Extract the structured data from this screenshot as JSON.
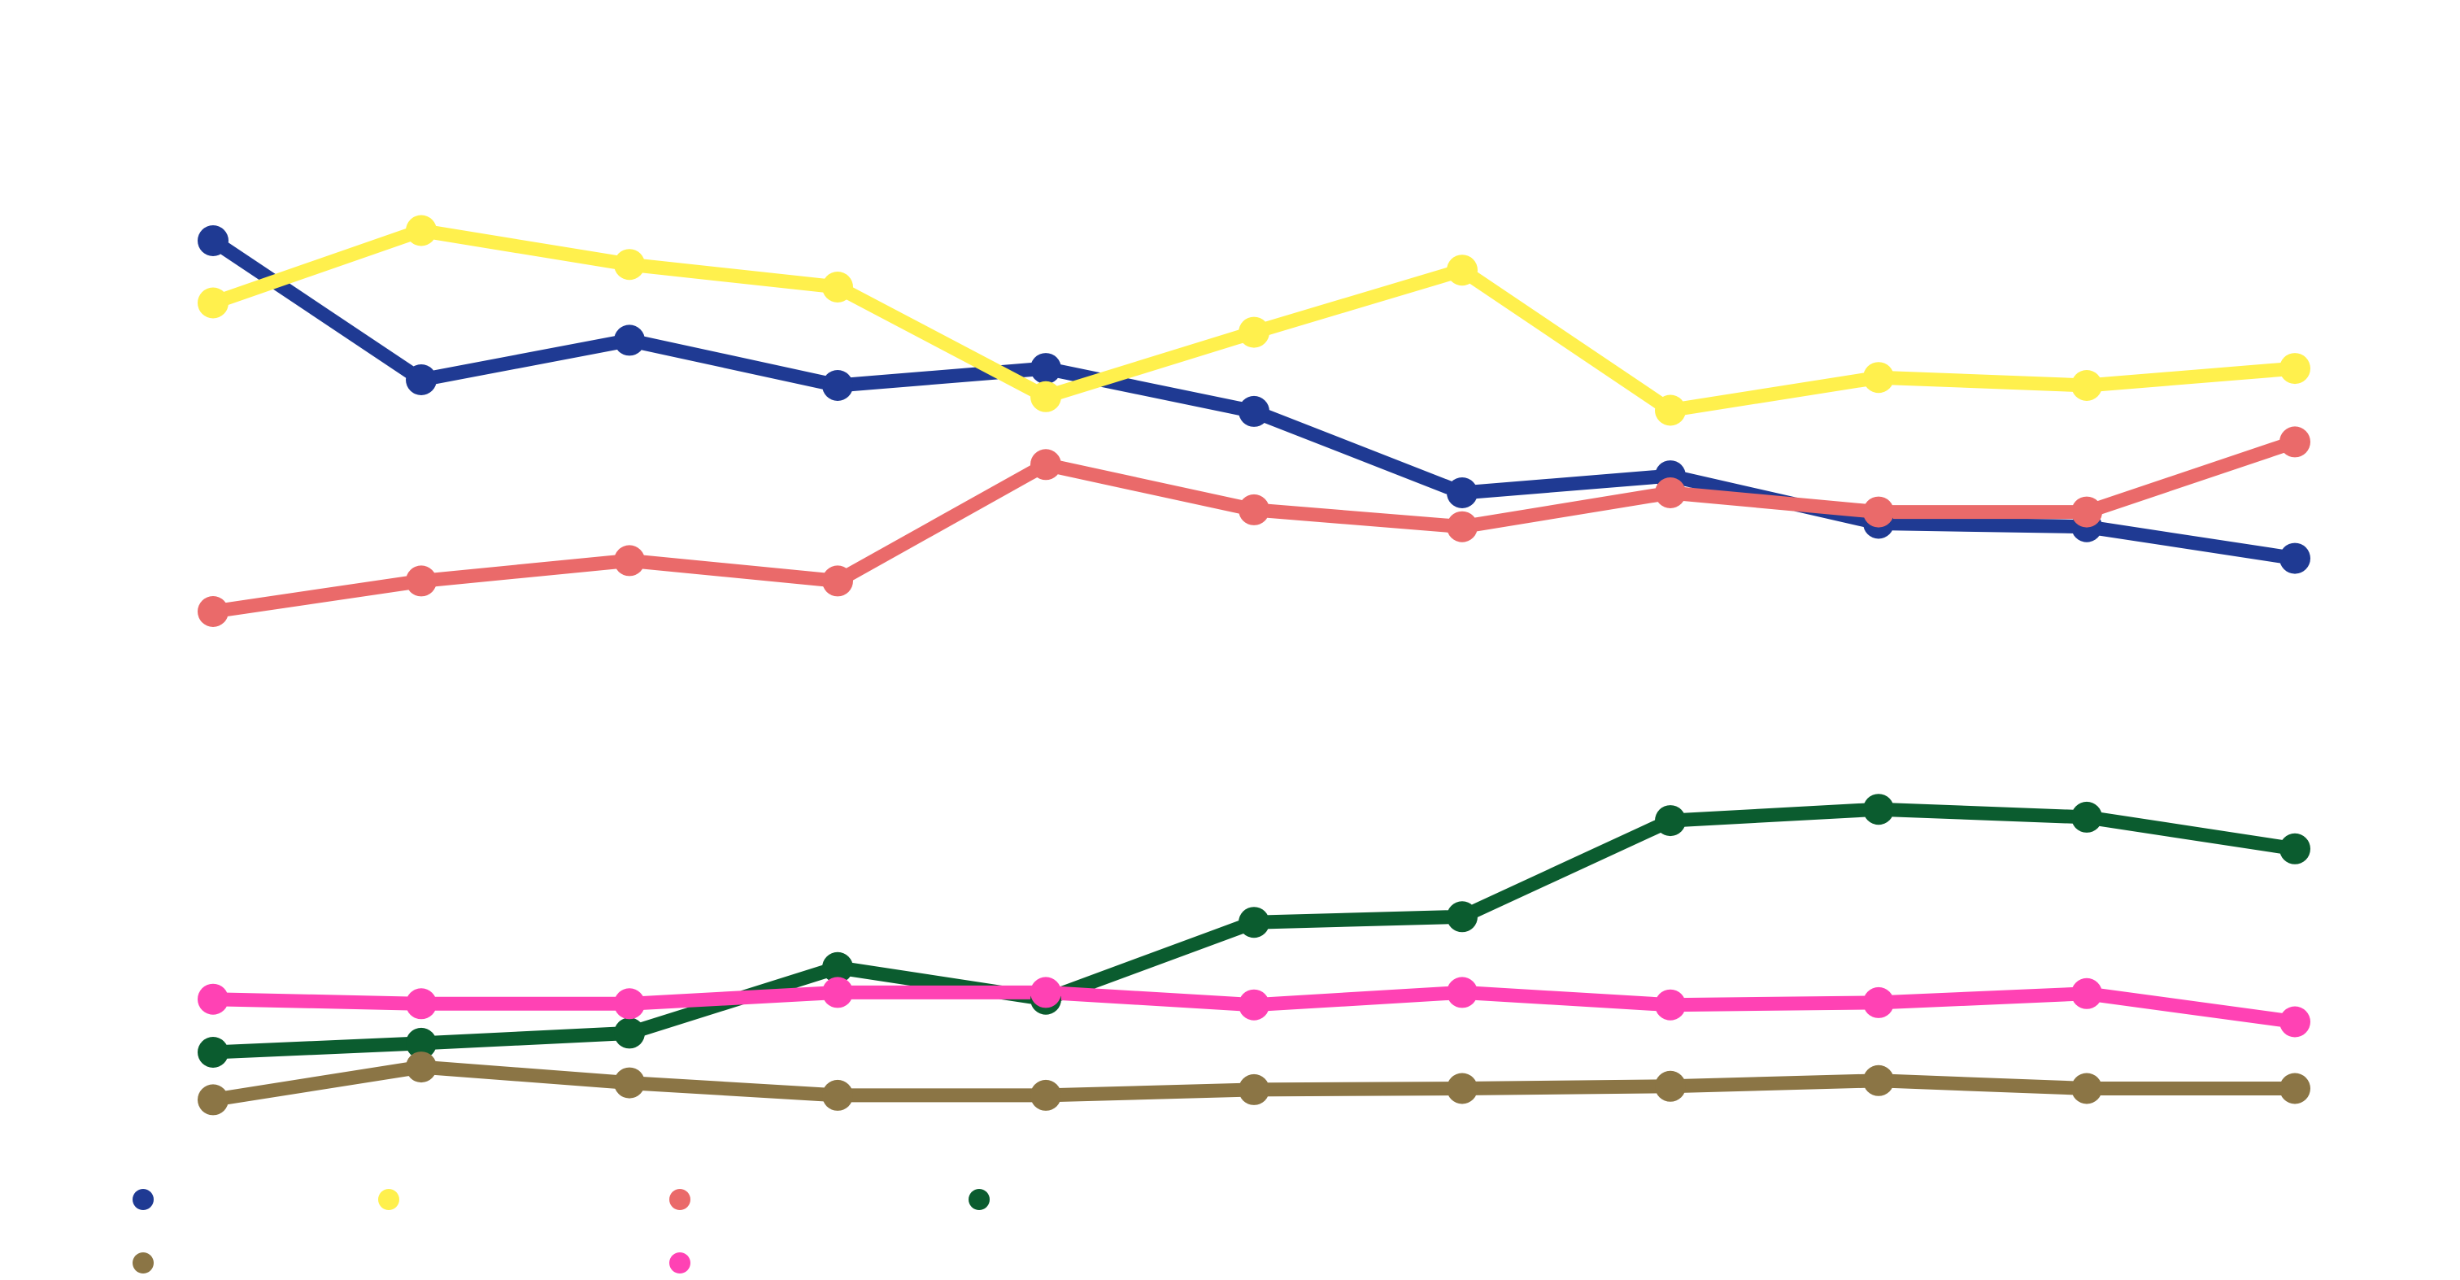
{
  "chart_data": {
    "type": "line",
    "x": [
      1,
      2,
      3,
      4,
      5,
      6,
      7,
      8,
      9,
      10,
      11
    ],
    "ylim": [
      0,
      100
    ],
    "grid": false,
    "legend_position": "bottom-left",
    "series": [
      {
        "color": "#1f3a93",
        "values": [
          82.3,
          70.0,
          73.5,
          69.5,
          71.0,
          67.2,
          60.0,
          61.5,
          57.3,
          57.0,
          54.2
        ]
      },
      {
        "color": "#fff04d",
        "values": [
          76.8,
          83.2,
          80.2,
          78.2,
          68.5,
          74.2,
          79.7,
          67.3,
          70.2,
          69.5,
          71.0
        ]
      },
      {
        "color": "#ea6a6a",
        "values": [
          49.5,
          52.2,
          54.0,
          52.2,
          62.5,
          58.5,
          57.0,
          60.0,
          58.3,
          58.3,
          64.5
        ]
      },
      {
        "color": "#0b5c2f",
        "values": [
          10.5,
          11.3,
          12.2,
          18.0,
          15.2,
          22.0,
          22.5,
          31.0,
          32.0,
          31.3,
          28.5
        ]
      },
      {
        "color": "#8b7545",
        "values": [
          6.3,
          9.2,
          7.8,
          6.7,
          6.7,
          7.2,
          7.3,
          7.5,
          8.0,
          7.3,
          7.3
        ]
      },
      {
        "color": "#ff42b4",
        "values": [
          15.2,
          14.8,
          14.8,
          15.8,
          15.8,
          14.7,
          15.8,
          14.7,
          14.9,
          15.7,
          13.2
        ]
      }
    ]
  }
}
